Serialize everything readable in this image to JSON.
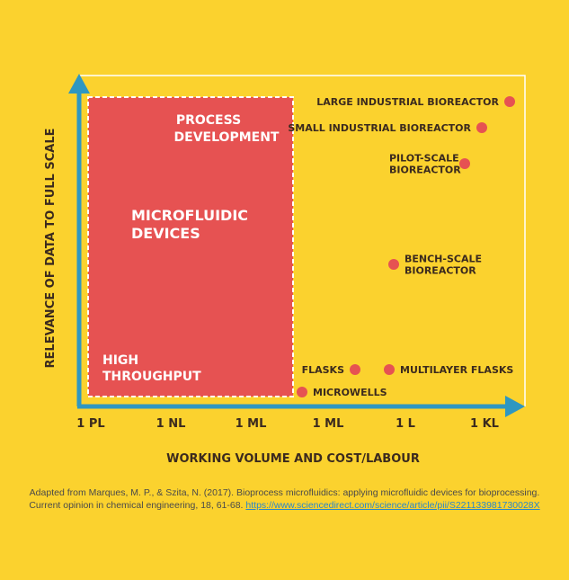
{
  "chart_data": {
    "type": "scatter",
    "xlabel": "WORKING VOLUME AND COST/LABOUR",
    "ylabel": "RELEVANCE OF DATA TO FULL SCALE",
    "x_ticks": [
      "1 PL",
      "1 NL",
      "1 ML",
      "1 ML",
      "1 L",
      "1 KL"
    ],
    "region": {
      "label_top": [
        "PROCESS",
        "DEVELOPMENT"
      ],
      "label_mid": [
        "MICROFLUIDIC",
        "DEVICES"
      ],
      "label_bottom": [
        "HIGH",
        "THROUGHPUT"
      ]
    },
    "points": [
      {
        "label": [
          "LARGE INDUSTRIAL BIOREACTOR"
        ],
        "label_side": "left"
      },
      {
        "label": [
          "SMALL INDUSTRIAL BIOREACTOR"
        ],
        "label_side": "left"
      },
      {
        "label": [
          "PILOT-SCALE",
          "BIOREACTOR"
        ],
        "label_side": "left"
      },
      {
        "label": [
          "BENCH-SCALE",
          "BIOREACTOR"
        ],
        "label_side": "right"
      },
      {
        "label": [
          "FLASKS"
        ],
        "label_side": "left"
      },
      {
        "label": [
          "MULTILAYER FLASKS"
        ],
        "label_side": "right"
      },
      {
        "label": [
          "MICROWELLS"
        ],
        "label_side": "right"
      }
    ],
    "colors": {
      "background": "#fbd22e",
      "axis": "#2f97c1",
      "region": "#e65252",
      "point": "#e65252",
      "text": "#3b2a1e"
    }
  },
  "caption": {
    "text_line1": "Adapted from Marques, M. P., & Szita, N. (2017). Bioprocess microfluidics: applying microfluidic devices for bioprocessing.",
    "text_line2": "Current opinion in chemical engineering, 18, 61-68.",
    "link": "https://www.sciencedirect.com/science/article/pii/S221133981730028X"
  }
}
